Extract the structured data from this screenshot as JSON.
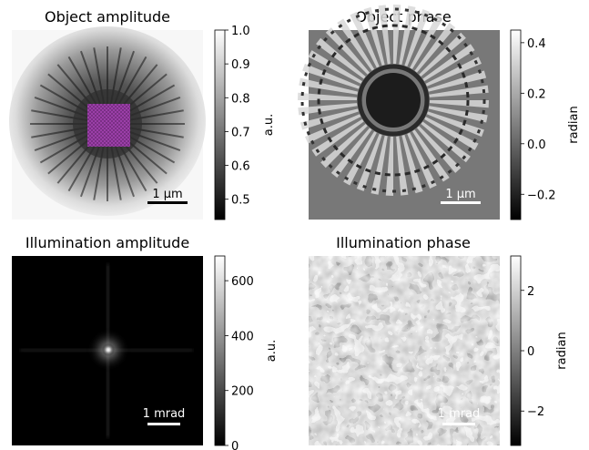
{
  "panels": [
    {
      "title": "Object amplitude",
      "colorbar": {
        "label": "a.u.",
        "range": [
          0.44,
          1.0
        ],
        "ticks": [
          "1.0",
          "0.9",
          "0.8",
          "0.7",
          "0.6",
          "0.5"
        ],
        "tick_values": [
          1.0,
          0.9,
          0.8,
          0.7,
          0.6,
          0.5
        ]
      },
      "scalebar": "1 µm",
      "highlight_color": "#a020f0"
    },
    {
      "title": "Object phase",
      "colorbar": {
        "label": "radian",
        "range": [
          -0.3,
          0.45
        ],
        "ticks": [
          "0.4",
          "0.2",
          "0.0",
          "−0.2"
        ],
        "tick_values": [
          0.4,
          0.2,
          0.0,
          -0.2
        ]
      },
      "scalebar": "1 µm"
    },
    {
      "title": "Illumination amplitude",
      "colorbar": {
        "label": "a.u.",
        "range": [
          0,
          690
        ],
        "ticks": [
          "600",
          "400",
          "200",
          "0"
        ],
        "tick_values": [
          600,
          400,
          200,
          0
        ]
      },
      "scalebar": "1 mrad"
    },
    {
      "title": "Illumination phase",
      "colorbar": {
        "label": "radian",
        "range": [
          -3.14,
          3.14
        ],
        "ticks": [
          "2",
          "0",
          "−2"
        ],
        "tick_values": [
          2,
          0,
          -2
        ]
      },
      "scalebar": "1 mrad"
    }
  ],
  "chart_data": [
    {
      "type": "heatmap",
      "title": "Object amplitude",
      "colormap": "gray",
      "value_range": [
        0.44,
        1.0
      ],
      "colorbar_label": "a.u.",
      "scalebar": "1 µm"
    },
    {
      "type": "heatmap",
      "title": "Object phase",
      "colormap": "gray",
      "value_range": [
        -0.3,
        0.45
      ],
      "colorbar_label": "radian",
      "scalebar": "1 µm"
    },
    {
      "type": "heatmap",
      "title": "Illumination amplitude",
      "colormap": "gray",
      "value_range": [
        0,
        690
      ],
      "colorbar_label": "a.u.",
      "scalebar": "1 mrad"
    },
    {
      "type": "heatmap",
      "title": "Illumination phase",
      "colormap": "gray",
      "value_range": [
        -3.14,
        3.14
      ],
      "colorbar_label": "radian",
      "scalebar": "1 mrad"
    }
  ]
}
